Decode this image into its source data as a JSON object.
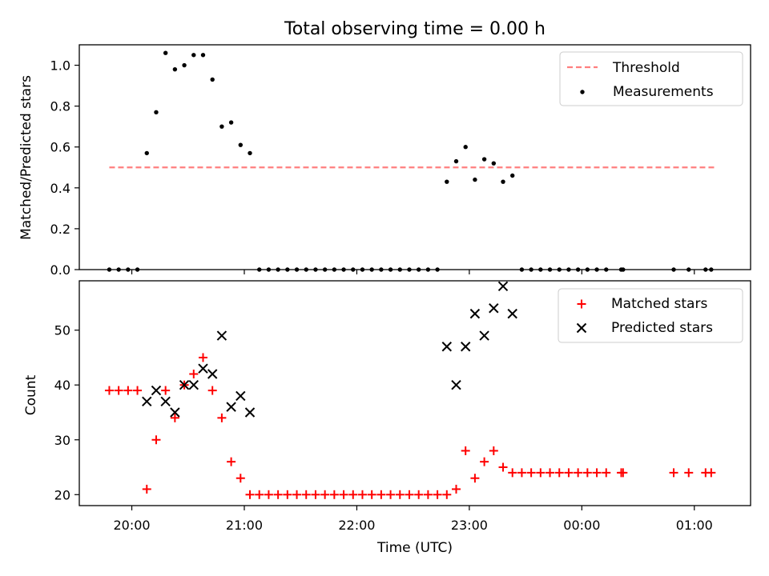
{
  "chart_data": [
    {
      "type": "scatter",
      "title": "Total observing time = 0.00 h",
      "xlabel": "",
      "ylabel": "Matched/Predicted stars",
      "xlim": [
        "19:32",
        "01:30"
      ],
      "ylim": [
        0.0,
        1.1
      ],
      "yticks": [
        "0.0",
        "0.2",
        "0.4",
        "0.6",
        "0.8",
        "1.0"
      ],
      "grid": false,
      "legend_location": "top-right",
      "threshold": {
        "name": "Threshold",
        "color": "#ff7f7f",
        "style": "dashed",
        "value": 0.5,
        "x_range": [
          "19:48",
          "01:12"
        ]
      },
      "series": [
        {
          "name": "Measurements",
          "color": "#000000",
          "marker": "dot",
          "x": [
            "19:48",
            "19:53",
            "19:58",
            "20:03",
            "20:08",
            "20:13",
            "20:18",
            "20:23",
            "20:28",
            "20:33",
            "20:38",
            "20:43",
            "20:48",
            "20:53",
            "20:58",
            "21:03",
            "21:08",
            "21:13",
            "21:18",
            "21:23",
            "21:28",
            "21:33",
            "21:38",
            "21:43",
            "21:48",
            "21:53",
            "21:58",
            "22:03",
            "22:08",
            "22:13",
            "22:18",
            "22:23",
            "22:28",
            "22:33",
            "22:38",
            "22:43",
            "22:48",
            "22:53",
            "22:58",
            "23:03",
            "23:08",
            "23:13",
            "23:18",
            "23:23",
            "23:28",
            "23:33",
            "23:38",
            "23:43",
            "23:48",
            "23:53",
            "23:58",
            "00:03",
            "00:08",
            "00:13",
            "00:21",
            "00:22",
            "00:49",
            "00:57",
            "01:06",
            "01:09"
          ],
          "y": [
            0,
            0,
            0,
            0,
            0.57,
            0.77,
            1.06,
            0.98,
            1.0,
            1.05,
            1.05,
            0.93,
            0.7,
            0.72,
            0.61,
            0.57,
            0,
            0,
            0,
            0,
            0,
            0,
            0,
            0,
            0,
            0,
            0,
            0,
            0,
            0,
            0,
            0,
            0,
            0,
            0,
            0,
            0.43,
            0.53,
            0.6,
            0.44,
            0.54,
            0.52,
            0.43,
            0.46,
            0,
            0,
            0,
            0,
            0,
            0,
            0,
            0,
            0,
            0,
            0,
            0,
            0,
            0,
            0,
            0
          ]
        }
      ]
    },
    {
      "type": "scatter",
      "title": "",
      "xlabel": "Time (UTC)",
      "ylabel": "Count",
      "xlim": [
        "19:32",
        "01:30"
      ],
      "ylim": [
        18,
        59
      ],
      "yticks": [
        "20",
        "30",
        "40",
        "50"
      ],
      "xticks": [
        "20:00",
        "21:00",
        "22:00",
        "23:00",
        "00:00",
        "01:00"
      ],
      "grid": false,
      "legend_location": "top-right",
      "series": [
        {
          "name": "Matched stars",
          "color": "#ff0000",
          "marker": "plus",
          "x": [
            "19:48",
            "19:53",
            "19:58",
            "20:03",
            "20:08",
            "20:13",
            "20:18",
            "20:23",
            "20:28",
            "20:33",
            "20:38",
            "20:43",
            "20:48",
            "20:53",
            "20:58",
            "21:03",
            "21:08",
            "21:13",
            "21:18",
            "21:23",
            "21:28",
            "21:33",
            "21:38",
            "21:43",
            "21:48",
            "21:53",
            "21:58",
            "22:03",
            "22:08",
            "22:13",
            "22:18",
            "22:23",
            "22:28",
            "22:33",
            "22:38",
            "22:43",
            "22:48",
            "22:53",
            "22:58",
            "23:03",
            "23:08",
            "23:13",
            "23:18",
            "23:23",
            "23:28",
            "23:33",
            "23:38",
            "23:43",
            "23:48",
            "23:53",
            "23:58",
            "00:03",
            "00:08",
            "00:13",
            "00:21",
            "00:22",
            "00:49",
            "00:57",
            "01:06",
            "01:09"
          ],
          "y": [
            39,
            39,
            39,
            39,
            21,
            30,
            39,
            34,
            40,
            42,
            45,
            39,
            34,
            26,
            23,
            20,
            20,
            20,
            20,
            20,
            20,
            20,
            20,
            20,
            20,
            20,
            20,
            20,
            20,
            20,
            20,
            20,
            20,
            20,
            20,
            20,
            20,
            21,
            28,
            23,
            26,
            28,
            25,
            24,
            24,
            24,
            24,
            24,
            24,
            24,
            24,
            24,
            24,
            24,
            24,
            24,
            24,
            24,
            24,
            24
          ]
        },
        {
          "name": "Predicted stars",
          "color": "#000000",
          "marker": "x",
          "x": [
            "20:08",
            "20:13",
            "20:18",
            "20:23",
            "20:28",
            "20:33",
            "20:38",
            "20:43",
            "20:48",
            "20:53",
            "20:58",
            "21:03",
            "22:48",
            "22:53",
            "22:58",
            "23:03",
            "23:08",
            "23:13",
            "23:18",
            "23:23"
          ],
          "y": [
            37,
            39,
            37,
            35,
            40,
            40,
            43,
            42,
            49,
            36,
            38,
            35,
            47,
            40,
            47,
            53,
            49,
            54,
            58,
            53
          ]
        }
      ]
    }
  ]
}
